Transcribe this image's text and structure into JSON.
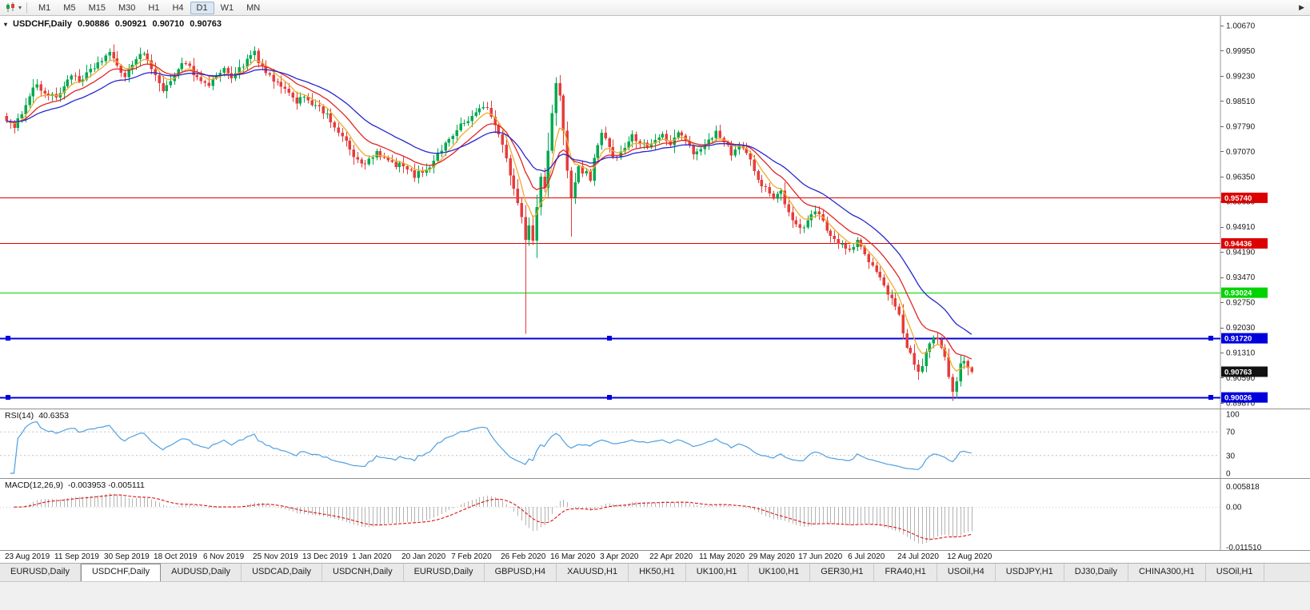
{
  "toolbar": {
    "timeframes": [
      "M1",
      "M5",
      "M15",
      "M30",
      "H1",
      "H4",
      "D1",
      "W1",
      "MN"
    ],
    "active_timeframe": "D1"
  },
  "main_chart": {
    "symbol_header": "USDCHF,Daily",
    "ohlc": {
      "open": "0.90886",
      "high": "0.90921",
      "low": "0.90710",
      "close": "0.90763"
    },
    "price_axis_labels": [
      "1.00670",
      "0.99950",
      "0.99230",
      "0.98510",
      "0.97790",
      "0.97070",
      "0.96350",
      "0.95630",
      "0.94910",
      "0.94190",
      "0.93470",
      "0.92750",
      "0.92030",
      "0.91310",
      "0.90590",
      "0.89870"
    ],
    "hlines": [
      {
        "value": 0.9574,
        "label": "0.95740",
        "color": "#dd0000",
        "selected": false
      },
      {
        "value": 0.94436,
        "label": "0.94436",
        "color": "#dd0000",
        "selected": false
      },
      {
        "value": 0.93024,
        "label": "0.93024",
        "color": "#00d400",
        "selected": false
      },
      {
        "value": 0.9172,
        "label": "0.91720",
        "color": "#0000dd",
        "selected": true
      },
      {
        "value": 0.90026,
        "label": "0.90026",
        "color": "#0000dd",
        "selected": true
      }
    ],
    "last_price": {
      "value": 0.90763,
      "label": "0.90763",
      "color": "#111111"
    }
  },
  "rsi_panel": {
    "title": "RSI(14)",
    "value": "40.6353",
    "axis_labels": [
      "100",
      "70",
      "30",
      "0"
    ],
    "levels": [
      70,
      30
    ],
    "line_color": "#4f9fe0"
  },
  "macd_panel": {
    "title": "MACD(12,26,9)",
    "values": "-0.003953 -0.005111",
    "axis_labels": [
      "0.005818",
      "0.00",
      "-0.011510"
    ],
    "histogram_color": "#b3b3b3",
    "signal_color": "#dd1111"
  },
  "date_axis": {
    "labels": [
      {
        "text": "23 Aug 2019",
        "bar": 0
      },
      {
        "text": "11 Sep 2019",
        "bar": 13
      },
      {
        "text": "30 Sep 2019",
        "bar": 26
      },
      {
        "text": "18 Oct 2019",
        "bar": 39
      },
      {
        "text": "6 Nov 2019",
        "bar": 52
      },
      {
        "text": "25 Nov 2019",
        "bar": 65
      },
      {
        "text": "13 Dec 2019",
        "bar": 78
      },
      {
        "text": "1 Jan 2020",
        "bar": 91
      },
      {
        "text": "20 Jan 2020",
        "bar": 104
      },
      {
        "text": "7 Feb 2020",
        "bar": 117
      },
      {
        "text": "26 Feb 2020",
        "bar": 130
      },
      {
        "text": "16 Mar 2020",
        "bar": 143
      },
      {
        "text": "3 Apr 2020",
        "bar": 156
      },
      {
        "text": "22 Apr 2020",
        "bar": 169
      },
      {
        "text": "11 May 2020",
        "bar": 182
      },
      {
        "text": "29 May 2020",
        "bar": 195
      },
      {
        "text": "17 Jun 2020",
        "bar": 208
      },
      {
        "text": "6 Jul 2020",
        "bar": 221
      },
      {
        "text": "24 Jul 2020",
        "bar": 234
      },
      {
        "text": "12 Aug 2020",
        "bar": 247
      }
    ]
  },
  "tabs": {
    "items": [
      "EURUSD,Daily",
      "USDCHF,Daily",
      "AUDUSD,Daily",
      "USDCAD,Daily",
      "USDCNH,Daily",
      "EURUSD,Daily",
      "GBPUSD,H4",
      "XAUUSD,H1",
      "HK50,H1",
      "UK100,H1",
      "UK100,H1",
      "GER30,H1",
      "FRA40,H1",
      "USOil,H4",
      "USDJPY,H1",
      "DJ30,Daily",
      "CHINA300,H1",
      "USOil,H1"
    ],
    "active_index": 1
  },
  "chart_data": {
    "type": "candlestick",
    "symbol": "USDCHF",
    "timeframe": "Daily",
    "bars": 254,
    "colors": {
      "up": "#00a94f",
      "down": "#e63c3c"
    },
    "y_axis": {
      "top_price": 1.0067,
      "price_step": 0.0072,
      "bottom_price": 0.8987
    },
    "close_path": [
      [
        0,
        0.98
      ],
      [
        2,
        0.9768
      ],
      [
        4,
        0.982
      ],
      [
        6,
        0.987
      ],
      [
        8,
        0.99
      ],
      [
        10,
        0.9872
      ],
      [
        13,
        0.986
      ],
      [
        15,
        0.9895
      ],
      [
        17,
        0.993
      ],
      [
        19,
        0.99
      ],
      [
        21,
        0.9925
      ],
      [
        24,
        0.996
      ],
      [
        27,
        0.999
      ],
      [
        29,
        0.9945
      ],
      [
        31,
        0.9925
      ],
      [
        33,
        0.9958
      ],
      [
        36,
        0.9988
      ],
      [
        38,
        0.995
      ],
      [
        40,
        0.9895
      ],
      [
        41,
        0.9872
      ],
      [
        43,
        0.9915
      ],
      [
        45,
        0.9945
      ],
      [
        47,
        0.9965
      ],
      [
        49,
        0.993
      ],
      [
        51,
        0.9908
      ],
      [
        53,
        0.9898
      ],
      [
        55,
        0.9925
      ],
      [
        57,
        0.994
      ],
      [
        59,
        0.9922
      ],
      [
        61,
        0.9945
      ],
      [
        63,
        0.9965
      ],
      [
        65,
        0.9992
      ],
      [
        66,
        0.996
      ],
      [
        68,
        0.993
      ],
      [
        70,
        0.9912
      ],
      [
        72,
        0.989
      ],
      [
        74,
        0.9868
      ],
      [
        76,
        0.9852
      ],
      [
        78,
        0.9868
      ],
      [
        80,
        0.9845
      ],
      [
        82,
        0.9828
      ],
      [
        84,
        0.9808
      ],
      [
        86,
        0.978
      ],
      [
        88,
        0.9748
      ],
      [
        90,
        0.9712
      ],
      [
        91,
        0.9692
      ],
      [
        93,
        0.9668
      ],
      [
        95,
        0.968
      ],
      [
        97,
        0.97
      ],
      [
        99,
        0.9685
      ],
      [
        101,
        0.9672
      ],
      [
        103,
        0.9668
      ],
      [
        105,
        0.9655
      ],
      [
        107,
        0.9638
      ],
      [
        109,
        0.965
      ],
      [
        111,
        0.9668
      ],
      [
        113,
        0.9698
      ],
      [
        115,
        0.9728
      ],
      [
        117,
        0.9758
      ],
      [
        119,
        0.978
      ],
      [
        121,
        0.9795
      ],
      [
        123,
        0.9818
      ],
      [
        125,
        0.984
      ],
      [
        126,
        0.9825
      ],
      [
        127,
        0.9808
      ],
      [
        128,
        0.978
      ],
      [
        129,
        0.9755
      ],
      [
        130,
        0.9718
      ],
      [
        131,
        0.969
      ],
      [
        132,
        0.964
      ],
      [
        133,
        0.96
      ],
      [
        134,
        0.9565
      ],
      [
        135,
        0.9515
      ],
      [
        136,
        0.9452
      ],
      [
        137,
        0.9502
      ],
      [
        138,
        0.9445
      ],
      [
        139,
        0.9552
      ],
      [
        140,
        0.9638
      ],
      [
        141,
        0.9605
      ],
      [
        142,
        0.9705
      ],
      [
        143,
        0.9812
      ],
      [
        144,
        0.9895
      ],
      [
        145,
        0.987
      ],
      [
        146,
        0.9772
      ],
      [
        147,
        0.9655
      ],
      [
        148,
        0.9572
      ],
      [
        149,
        0.962
      ],
      [
        150,
        0.9672
      ],
      [
        151,
        0.964
      ],
      [
        152,
        0.9655
      ],
      [
        153,
        0.9628
      ],
      [
        154,
        0.9688
      ],
      [
        155,
        0.9722
      ],
      [
        156,
        0.9758
      ],
      [
        157,
        0.974
      ],
      [
        158,
        0.9722
      ],
      [
        159,
        0.9698
      ],
      [
        160,
        0.9682
      ],
      [
        161,
        0.9702
      ],
      [
        162,
        0.9722
      ],
      [
        163,
        0.9742
      ],
      [
        164,
        0.9758
      ],
      [
        165,
        0.9742
      ],
      [
        166,
        0.9735
      ],
      [
        168,
        0.9718
      ],
      [
        170,
        0.9738
      ],
      [
        172,
        0.9752
      ],
      [
        174,
        0.973
      ],
      [
        176,
        0.9758
      ],
      [
        178,
        0.9735
      ],
      [
        180,
        0.9702
      ],
      [
        182,
        0.9718
      ],
      [
        184,
        0.9742
      ],
      [
        186,
        0.976
      ],
      [
        188,
        0.9735
      ],
      [
        190,
        0.9702
      ],
      [
        192,
        0.9722
      ],
      [
        194,
        0.97
      ],
      [
        195,
        0.9682
      ],
      [
        197,
        0.9625
      ],
      [
        199,
        0.9602
      ],
      [
        201,
        0.9565
      ],
      [
        203,
        0.9592
      ],
      [
        205,
        0.9535
      ],
      [
        207,
        0.95
      ],
      [
        208,
        0.9482
      ],
      [
        210,
        0.9512
      ],
      [
        212,
        0.9542
      ],
      [
        214,
        0.9502
      ],
      [
        216,
        0.9472
      ],
      [
        218,
        0.9445
      ],
      [
        220,
        0.9428
      ],
      [
        221,
        0.9422
      ],
      [
        223,
        0.9452
      ],
      [
        225,
        0.9405
      ],
      [
        227,
        0.9382
      ],
      [
        229,
        0.9345
      ],
      [
        231,
        0.9302
      ],
      [
        233,
        0.9262
      ],
      [
        234,
        0.9232
      ],
      [
        235,
        0.9185
      ],
      [
        236,
        0.9152
      ],
      [
        237,
        0.9122
      ],
      [
        238,
        0.91
      ],
      [
        239,
        0.9072
      ],
      [
        240,
        0.9085
      ],
      [
        241,
        0.9125
      ],
      [
        242,
        0.9152
      ],
      [
        243,
        0.918
      ],
      [
        244,
        0.9172
      ],
      [
        245,
        0.9142
      ],
      [
        246,
        0.9115
      ],
      [
        247,
        0.9062
      ],
      [
        248,
        0.9012
      ],
      [
        249,
        0.9052
      ],
      [
        250,
        0.9092
      ],
      [
        251,
        0.9112
      ],
      [
        252,
        0.9088
      ],
      [
        253,
        0.90763
      ]
    ],
    "key_wicks": [
      {
        "i": 27,
        "high": 0.9999
      },
      {
        "i": 65,
        "high": 1.0008
      },
      {
        "i": 136,
        "low": 0.9185
      },
      {
        "i": 144,
        "high": 0.9901
      },
      {
        "i": 148,
        "low": 0.9463
      },
      {
        "i": 239,
        "low": 0.9056
      },
      {
        "i": 248,
        "low": 0.8997
      }
    ],
    "last_bar": {
      "o": 0.90886,
      "h": 0.90921,
      "l": 0.9071,
      "c": 0.90763
    },
    "ma_lines": [
      {
        "name": "ma-fast",
        "period": 6,
        "color": "#edac2c"
      },
      {
        "name": "ma-mid",
        "period": 14,
        "color": "#e02626"
      },
      {
        "name": "ma-slow",
        "period": 28,
        "color": "#2727cf"
      }
    ],
    "indicators": {
      "rsi": {
        "period": 14,
        "last": 40.6353
      },
      "macd": {
        "fast": 12,
        "slow": 26,
        "signal": 9,
        "last_macd": -0.003953,
        "last_signal": -0.005111
      }
    }
  }
}
